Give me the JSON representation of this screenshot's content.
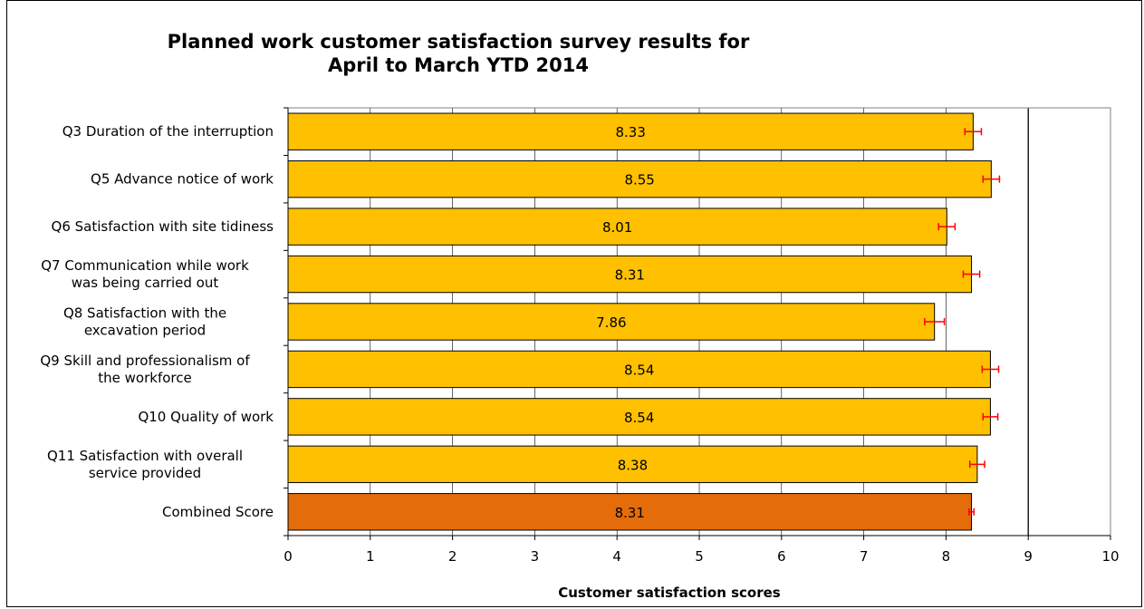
{
  "chart_data": {
    "type": "bar",
    "orientation": "horizontal",
    "title": "Planned work customer satisfaction survey results for\nApril to March YTD 2014",
    "xlabel": "Customer satisfaction scores",
    "ylabel": "",
    "xlim": [
      0,
      10
    ],
    "x_ticks": [
      "0",
      "1",
      "2",
      "3",
      "4",
      "5",
      "6",
      "7",
      "8",
      "9",
      "10"
    ],
    "reference_line": 9,
    "grid": true,
    "categories": [
      [
        "Q3 Duration of the interruption"
      ],
      [
        "Q5 Advance notice of work"
      ],
      [
        "Q6 Satisfaction with site tidiness"
      ],
      [
        "Q7 Communication while work",
        "was being carried out"
      ],
      [
        "Q8 Satisfaction with the",
        "excavation period"
      ],
      [
        "Q9 Skill and professionalism of",
        "the workforce"
      ],
      [
        "Q10 Quality of work"
      ],
      [
        "Q11 Satisfaction with overall",
        "service provided"
      ],
      [
        "Combined Score"
      ]
    ],
    "values": [
      8.33,
      8.55,
      8.01,
      8.31,
      7.86,
      8.54,
      8.54,
      8.38,
      8.31
    ],
    "value_labels": [
      "8.33",
      "8.55",
      "8.01",
      "8.31",
      "7.86",
      "8.54",
      "8.54",
      "8.38",
      "8.31"
    ],
    "error": [
      0.1,
      0.1,
      0.1,
      0.1,
      0.12,
      0.1,
      0.09,
      0.09,
      0.03
    ],
    "colors": {
      "bar": "#FFC000",
      "highlight_bar": "#E46C0A",
      "bar_border": "#000000",
      "error_bar": "#FF0000",
      "grid": "#000000"
    },
    "highlight_index": 8
  }
}
